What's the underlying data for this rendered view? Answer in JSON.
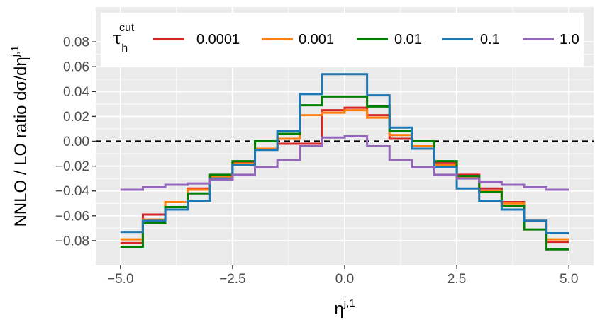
{
  "chart_data": {
    "type": "line",
    "xlabel": {
      "main": "η",
      "sup": "j,1"
    },
    "ylabel": {
      "prefix": "NNLO / LO ratio dσ/dη",
      "sup": "j,1"
    },
    "xlim": [
      -5.55,
      5.55
    ],
    "ylim": [
      -0.1,
      0.108
    ],
    "x_ticks": [
      -5.0,
      -2.5,
      0.0,
      2.5,
      5.0
    ],
    "x_tick_labels": [
      "−5.0",
      "−2.5",
      "0.0",
      "2.5",
      "5.0"
    ],
    "y_ticks": [
      -0.08,
      -0.06,
      -0.04,
      -0.02,
      0.0,
      0.02,
      0.04,
      0.06,
      0.08
    ],
    "y_tick_labels": [
      "−0.08",
      "−0.06",
      "−0.04",
      "−0.02",
      "0.00",
      "0.02",
      "0.04",
      "0.06",
      "0.08"
    ],
    "grid": true,
    "reference_line": {
      "y": 0.0,
      "style": "dashed",
      "color": "#000000"
    },
    "legend": {
      "position": "top",
      "title_main": "τ",
      "title_sub": "h",
      "title_sup": "cut"
    },
    "bin_edges": [
      -5.0,
      -4.5,
      -4.0,
      -3.5,
      -3.0,
      -2.5,
      -2.0,
      -1.5,
      -1.0,
      -0.5,
      0.0,
      0.5,
      1.0,
      1.5,
      2.0,
      2.5,
      3.0,
      3.5,
      4.0,
      4.5,
      5.0
    ],
    "series": [
      {
        "name": "0.0001",
        "color": "#d62728",
        "values": [
          -0.082,
          -0.059,
          -0.049,
          -0.038,
          -0.028,
          -0.017,
          -0.006,
          -0.002,
          -0.002,
          0.025,
          0.027,
          0.021,
          0.002,
          -0.006,
          -0.017,
          -0.027,
          -0.038,
          -0.049,
          -0.064,
          -0.081
        ]
      },
      {
        "name": "0.001",
        "color": "#ff7f0e",
        "values": [
          -0.079,
          -0.063,
          -0.049,
          -0.039,
          -0.029,
          -0.018,
          -0.006,
          0.002,
          0.021,
          0.023,
          0.025,
          0.019,
          0.005,
          -0.004,
          -0.019,
          -0.029,
          -0.04,
          -0.05,
          -0.064,
          -0.079
        ]
      },
      {
        "name": "0.01",
        "color": "#008000",
        "values": [
          -0.085,
          -0.066,
          -0.053,
          -0.042,
          -0.027,
          -0.016,
          0.0,
          0.006,
          0.029,
          0.036,
          0.036,
          0.028,
          0.008,
          0.0,
          -0.016,
          -0.028,
          -0.041,
          -0.052,
          -0.071,
          -0.087
        ]
      },
      {
        "name": "0.1",
        "color": "#1f77b4",
        "values": [
          -0.073,
          -0.064,
          -0.055,
          -0.048,
          -0.03,
          -0.019,
          -0.007,
          0.008,
          0.038,
          0.054,
          0.054,
          0.037,
          0.011,
          -0.006,
          -0.021,
          -0.038,
          -0.048,
          -0.055,
          -0.064,
          -0.074
        ]
      },
      {
        "name": "1.0",
        "color": "#9467bd",
        "values": [
          -0.039,
          -0.037,
          -0.035,
          -0.034,
          -0.031,
          -0.027,
          -0.021,
          -0.015,
          -0.004,
          0.003,
          0.004,
          -0.004,
          -0.015,
          -0.021,
          -0.027,
          -0.03,
          -0.033,
          -0.035,
          -0.037,
          -0.039
        ]
      }
    ]
  }
}
